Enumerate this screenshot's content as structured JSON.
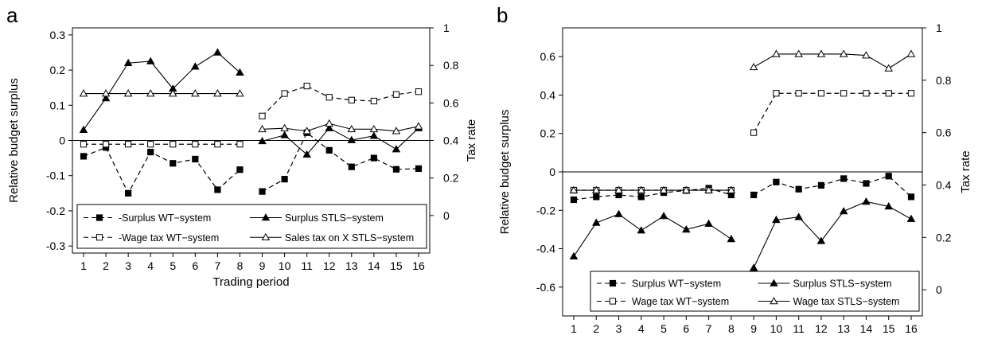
{
  "chart_data": [
    {
      "panel": "a",
      "type": "line",
      "xlabel": "Trading period",
      "ylabel": "Relative budget surplus",
      "y2label": "Tax rate",
      "x": [
        1,
        2,
        3,
        4,
        5,
        6,
        7,
        8,
        9,
        10,
        11,
        12,
        13,
        14,
        15,
        16
      ],
      "xticks": [
        "1",
        "2",
        "3",
        "4",
        "5",
        "6",
        "7",
        "8",
        "9",
        "10",
        "11",
        "12",
        "13",
        "14",
        "15",
        "16"
      ],
      "ylim": [
        -0.32,
        0.32
      ],
      "yticks": [
        "-0.3",
        "-0.2",
        "-0.1",
        "0",
        "0.1",
        "0.2",
        "0.3"
      ],
      "y2lim": [
        -0.2,
        1.0
      ],
      "y2ticks": [
        "0",
        "0.2",
        "0.4",
        "0.6",
        "0.8",
        "1"
      ],
      "zero_line": true,
      "grid": false,
      "legend_position": "bottom",
      "series": [
        {
          "name": "-Surplus WT−system",
          "axis": "left",
          "style": "dashed",
          "marker": "filled-square",
          "values": [
            -0.045,
            -0.02,
            -0.15,
            -0.033,
            -0.065,
            -0.053,
            -0.14,
            -0.083,
            -0.145,
            -0.11,
            0.022,
            -0.028,
            -0.075,
            -0.05,
            -0.082,
            -0.08
          ]
        },
        {
          "name": "Surplus STLS−system",
          "axis": "left",
          "style": "solid",
          "marker": "filled-triangle",
          "values": [
            0.03,
            0.12,
            0.22,
            0.225,
            0.147,
            0.21,
            0.25,
            0.193,
            -0.002,
            0.015,
            -0.04,
            0.035,
            0.001,
            0.013,
            -0.025,
            0.035
          ]
        },
        {
          "name": "-Wage tax WT−system",
          "axis": "right",
          "style": "dashed",
          "marker": "open-square",
          "values": [
            0.38,
            0.38,
            0.38,
            0.38,
            0.38,
            0.38,
            0.38,
            0.38,
            0.53,
            0.65,
            0.69,
            0.63,
            0.615,
            0.61,
            0.645,
            0.66
          ]
        },
        {
          "name": "Sales tax on X STLS−system",
          "axis": "right",
          "style": "solid",
          "marker": "open-triangle",
          "values": [
            0.65,
            0.65,
            0.65,
            0.65,
            0.65,
            0.65,
            0.65,
            0.65,
            0.46,
            0.465,
            0.45,
            0.49,
            0.46,
            0.46,
            0.45,
            0.475
          ]
        }
      ]
    },
    {
      "panel": "b",
      "type": "line",
      "xlabel": "Trading period",
      "ylabel": "Relative budget surplus",
      "y2label": "Tax rate",
      "x": [
        1,
        2,
        3,
        4,
        5,
        6,
        7,
        8,
        9,
        10,
        11,
        12,
        13,
        14,
        15,
        16
      ],
      "xticks": [
        "1",
        "2",
        "3",
        "4",
        "5",
        "6",
        "7",
        "8",
        "9",
        "10",
        "11",
        "12",
        "13",
        "14",
        "15",
        "16"
      ],
      "ylim": [
        -0.75,
        0.75
      ],
      "yticks": [
        "-0.6",
        "-0.4",
        "-0.2",
        "0",
        "0.2",
        "0.4",
        "0.6"
      ],
      "y2lim": [
        -0.1,
        1.0
      ],
      "y2ticks": [
        "0",
        "0.2",
        "0.4",
        "0.6",
        "0.8",
        "1"
      ],
      "zero_line": true,
      "grid": false,
      "legend_position": "bottom",
      "series": [
        {
          "name": "Surplus WT−system",
          "axis": "left",
          "style": "dashed",
          "marker": "filled-square",
          "values": [
            -0.145,
            -0.13,
            -0.12,
            -0.13,
            -0.108,
            -0.097,
            -0.085,
            -0.12,
            -0.12,
            -0.053,
            -0.09,
            -0.07,
            -0.035,
            -0.06,
            -0.022,
            -0.13
          ]
        },
        {
          "name": "Surplus STLS−system",
          "axis": "left",
          "style": "solid",
          "marker": "filled-triangle",
          "values": [
            -0.44,
            -0.265,
            -0.22,
            -0.305,
            -0.23,
            -0.3,
            -0.27,
            -0.35,
            -0.5,
            -0.25,
            -0.235,
            -0.36,
            -0.205,
            -0.155,
            -0.18,
            -0.245
          ]
        },
        {
          "name": "Wage tax WT−system",
          "axis": "right",
          "style": "dashed",
          "marker": "open-square",
          "values": [
            0.38,
            0.38,
            0.38,
            0.38,
            0.38,
            0.38,
            0.38,
            0.38,
            0.6,
            0.75,
            0.75,
            0.75,
            0.75,
            0.75,
            0.75,
            0.75
          ]
        },
        {
          "name": "Wage tax STLS−system",
          "axis": "right",
          "style": "solid",
          "marker": "open-triangle",
          "values": [
            0.38,
            0.38,
            0.38,
            0.38,
            0.38,
            0.38,
            0.38,
            0.38,
            0.85,
            0.9,
            0.9,
            0.9,
            0.9,
            0.895,
            0.845,
            0.9
          ]
        }
      ]
    }
  ]
}
